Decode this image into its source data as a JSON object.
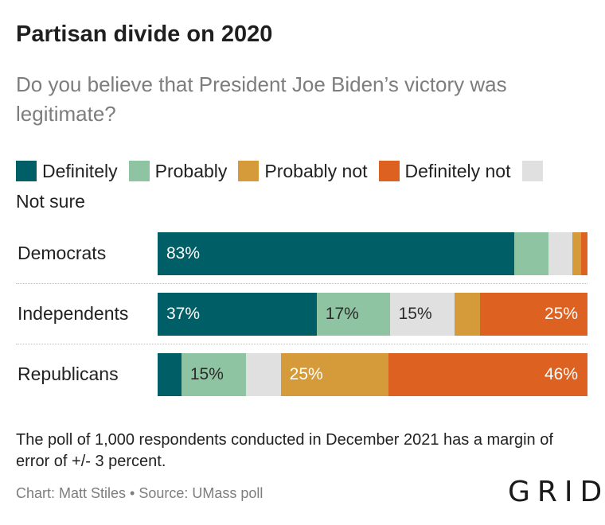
{
  "title": "Partisan divide on 2020",
  "subtitle": "Do you believe that President Joe Biden’s victory was legitimate?",
  "legend": [
    {
      "label": "Definitely",
      "color": "#005f66"
    },
    {
      "label": "Probably",
      "color": "#8fc4a2"
    },
    {
      "label": "Probably not",
      "color": "#d59b3a"
    },
    {
      "label": "Definitely not",
      "color": "#dd6120"
    },
    {
      "label": "Not sure",
      "color": "#e0e0e0"
    }
  ],
  "chart_data": {
    "type": "bar",
    "orientation": "horizontal",
    "stacked": true,
    "normalized_percent": true,
    "categories": [
      "Democrats",
      "Independents",
      "Republicans"
    ],
    "series": [
      {
        "name": "Definitely",
        "color": "#005f66",
        "values": [
          83,
          37,
          5.5
        ]
      },
      {
        "name": "Probably",
        "color": "#8fc4a2",
        "values": [
          8,
          17,
          15
        ]
      },
      {
        "name": "Not sure",
        "color": "#e0e0e0",
        "values": [
          5.5,
          15,
          8
        ]
      },
      {
        "name": "Probably not",
        "color": "#d59b3a",
        "values": [
          2,
          6,
          25
        ]
      },
      {
        "name": "Definitely not",
        "color": "#dd6120",
        "values": [
          1.5,
          25,
          46
        ]
      }
    ],
    "data_labels": [
      [
        "83%",
        "",
        "",
        "",
        ""
      ],
      [
        "37%",
        "17%",
        "15%",
        "",
        "25%"
      ],
      [
        "",
        "15%",
        "",
        "25%",
        "46%"
      ]
    ],
    "label_colors": {
      "Definitely": "#ffffff",
      "Probably": "#2b2b2b",
      "Not sure": "#2b2b2b",
      "Probably not": "#ffffff",
      "Definitely not": "#ffffff"
    },
    "xlim": [
      0,
      100
    ],
    "grid": false,
    "legend_position": "top"
  },
  "note": "The poll of 1,000 respondents conducted in December 2021 has a margin of error of +/- 3 percent.",
  "credit": "Chart: Matt Stiles • Source: UMass poll",
  "logo": "GRID"
}
